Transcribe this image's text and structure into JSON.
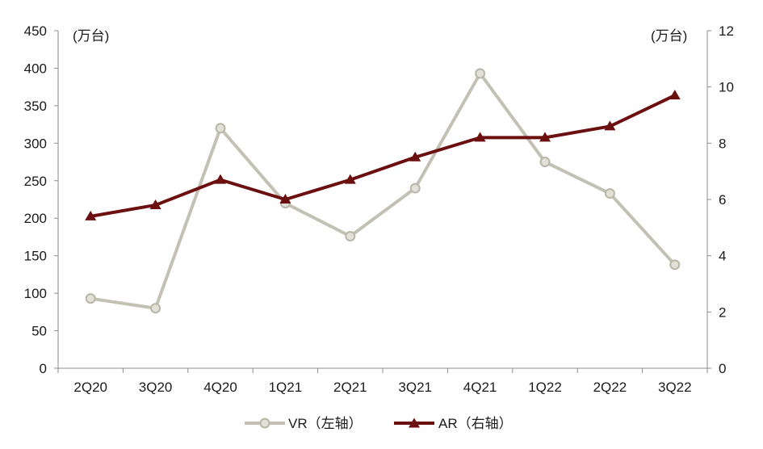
{
  "chart_data": {
    "type": "line",
    "categories": [
      "2Q20",
      "3Q20",
      "4Q20",
      "1Q21",
      "2Q21",
      "3Q21",
      "4Q21",
      "1Q22",
      "2Q22",
      "3Q22"
    ],
    "y_left": {
      "unit": "(万台)",
      "range": [
        0,
        450
      ],
      "ticks": [
        "0",
        "50",
        "100",
        "150",
        "200",
        "250",
        "300",
        "350",
        "400",
        "450"
      ]
    },
    "y_right": {
      "unit": "(万台)",
      "range": [
        0,
        12
      ],
      "ticks": [
        "0",
        "2",
        "4",
        "6",
        "8",
        "10",
        "12"
      ]
    },
    "series": [
      {
        "name": "VR（左轴）",
        "axis": "left",
        "color": "#c3c1b3",
        "marker": "circle",
        "values": [
          93,
          80,
          320,
          220,
          176,
          240,
          393,
          275,
          233,
          138
        ]
      },
      {
        "name": "AR（右轴）",
        "axis": "right",
        "color": "#6b0f0f",
        "marker": "triangle",
        "values": [
          5.4,
          5.8,
          6.7,
          6.0,
          6.7,
          7.5,
          8.2,
          8.2,
          8.6,
          9.7
        ]
      }
    ],
    "grid": false,
    "legend_position": "bottom"
  }
}
